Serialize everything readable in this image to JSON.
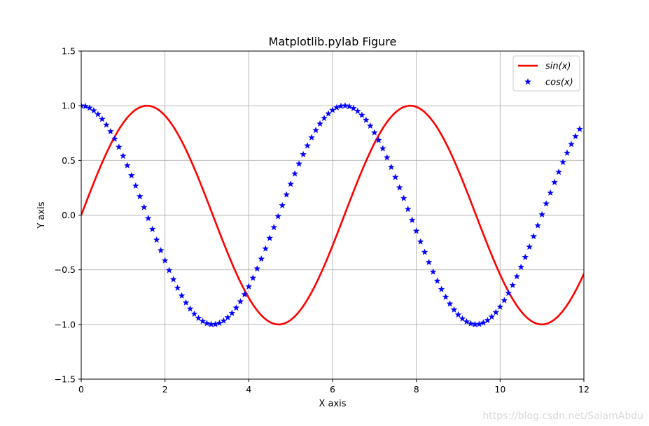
{
  "chart_data": {
    "type": "line",
    "title": "Matplotlib.pylab Figure",
    "xlabel": "X axis",
    "ylabel": "Y axis",
    "xlim": [
      0,
      12
    ],
    "ylim": [
      -1.5,
      1.5
    ],
    "grid": true,
    "legend_position": "top-right",
    "xticks": [
      0,
      2,
      4,
      6,
      8,
      10,
      12
    ],
    "yticks": [
      -1.5,
      -1.0,
      -0.5,
      0.0,
      0.5,
      1.0,
      1.5
    ],
    "xtick_labels": [
      "0",
      "2",
      "4",
      "6",
      "8",
      "10",
      "12"
    ],
    "ytick_labels": [
      "−1.5",
      "−1.0",
      "−0.5",
      "0.0",
      "0.5",
      "1.0",
      "1.5"
    ],
    "series": [
      {
        "name": "sin(x)",
        "legend_label": "sin(x)",
        "style": "line",
        "color": "#ff0000",
        "function": "sin",
        "x_range": [
          0,
          12
        ],
        "samples": 400
      },
      {
        "name": "cos(x)",
        "legend_label": "cos(x)",
        "style": "star-markers",
        "color": "#0000ff",
        "function": "cos",
        "x_range": [
          0,
          12
        ],
        "x_step": 0.1
      }
    ]
  },
  "watermark": "https://blog.csdn.net/SalamAbdu"
}
